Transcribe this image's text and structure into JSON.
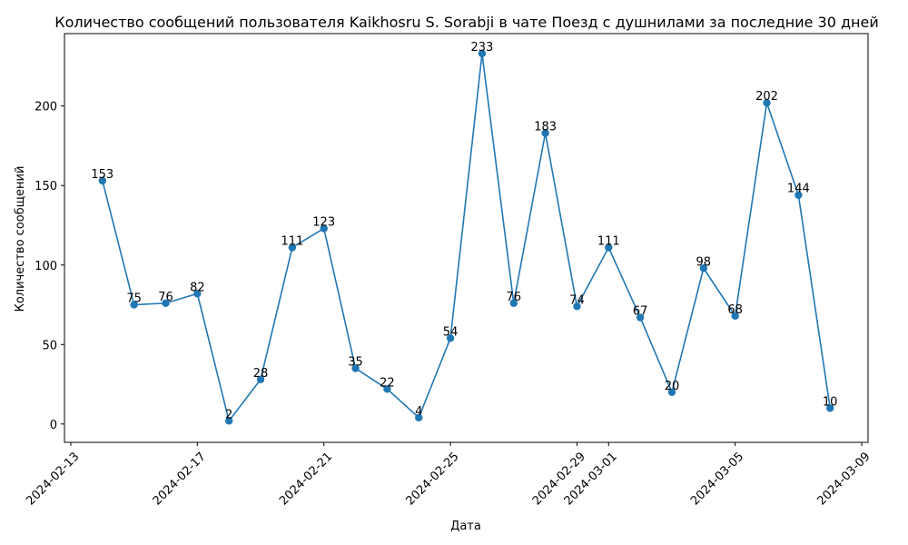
{
  "chart_data": {
    "type": "line",
    "title": "Количество сообщений пользователя Kaikhosru S. Sorabji в чате Поезд с душнилами за последние 30 дней",
    "xlabel": "Дата",
    "ylabel": "Количество сообщений",
    "x": [
      "2024-02-14",
      "2024-02-15",
      "2024-02-16",
      "2024-02-17",
      "2024-02-18",
      "2024-02-19",
      "2024-02-20",
      "2024-02-21",
      "2024-02-22",
      "2024-02-23",
      "2024-02-24",
      "2024-02-25",
      "2024-02-26",
      "2024-02-27",
      "2024-02-28",
      "2024-02-29",
      "2024-03-01",
      "2024-03-02",
      "2024-03-03",
      "2024-03-04",
      "2024-03-05",
      "2024-03-06",
      "2024-03-07",
      "2024-03-08"
    ],
    "series": [
      {
        "values": [
          153,
          75,
          76,
          82,
          2,
          28,
          111,
          123,
          35,
          22,
          4,
          54,
          233,
          76,
          183,
          74,
          111,
          67,
          20,
          98,
          68,
          202,
          144,
          10
        ],
        "color": "#1f77b4",
        "marker": "circle"
      }
    ],
    "x_ticks": [
      "2024-02-13",
      "2024-02-17",
      "2024-02-21",
      "2024-02-25",
      "2024-02-29",
      "2024-03-01",
      "2024-03-05",
      "2024-03-09"
    ],
    "y_ticks": [
      0,
      50,
      100,
      150,
      200
    ],
    "xlim": [
      "2024-02-12T19:12",
      "2024-03-09T04:48"
    ],
    "ylim": [
      -11.55,
      245.55
    ],
    "data_labels": true,
    "grid": false,
    "legend": "none"
  }
}
